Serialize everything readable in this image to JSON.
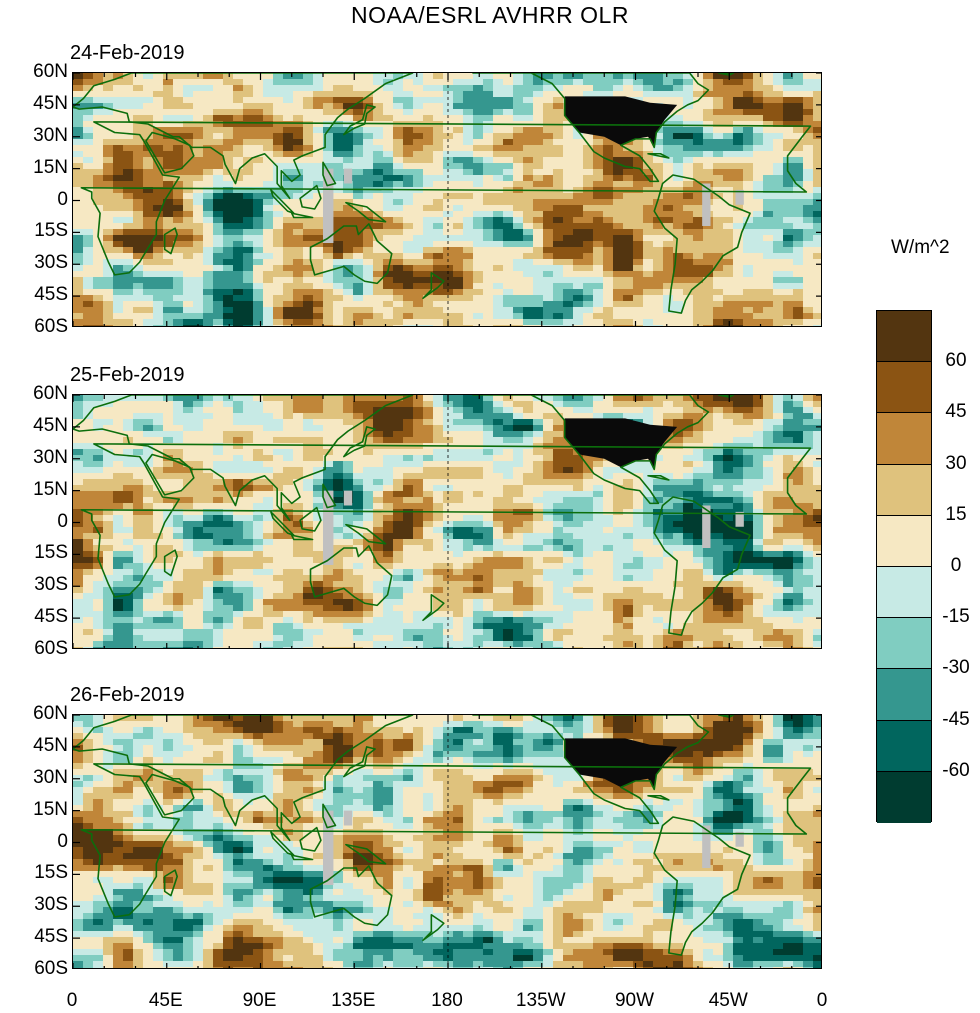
{
  "title": "NOAA/ESRL AVHRR OLR",
  "panels": [
    {
      "date": "24-Feb-2019"
    },
    {
      "date": "25-Feb-2019"
    },
    {
      "date": "26-Feb-2019"
    }
  ],
  "lat_labels": [
    "60N",
    "45N",
    "30N",
    "15N",
    "0",
    "15S",
    "30S",
    "45S",
    "60S"
  ],
  "lon_labels": [
    "0",
    "45E",
    "90E",
    "135E",
    "180",
    "135W",
    "90W",
    "45W",
    "0"
  ],
  "colorbar": {
    "units": "W/m^2",
    "levels": [
      "60",
      "45",
      "30",
      "15",
      "0",
      "-15",
      "-30",
      "-45",
      "-60"
    ],
    "colors": [
      "#533510",
      "#8b5413",
      "#c08639",
      "#dfc27d",
      "#f6e8c3",
      "#c7eae5",
      "#80cdc1",
      "#35978f",
      "#01665e",
      "#003c30"
    ]
  },
  "colors": {
    "coast": "#0c6e0c",
    "missing": "#c0c0c0"
  }
}
